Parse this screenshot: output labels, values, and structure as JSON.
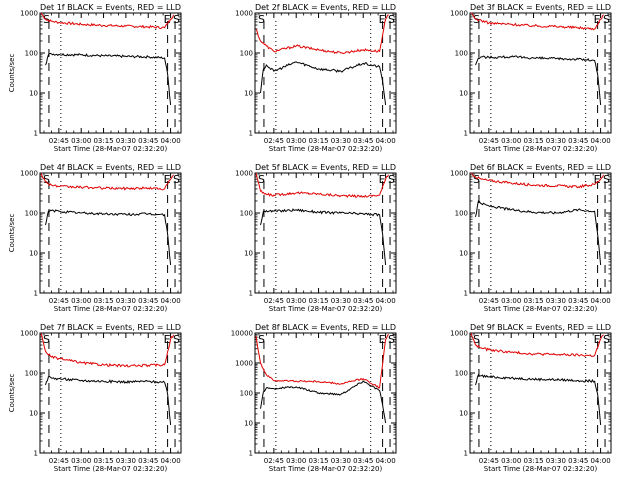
{
  "figure": {
    "ylabel": "Counts/sec",
    "xlabel": "Start Time (28-Mar-07 02:32:20)",
    "x_tick_labels": [
      "02:45",
      "03:00",
      "03:15",
      "03:30",
      "03:45",
      "04:00"
    ],
    "y_tick_labels": [
      "1",
      "10",
      "100",
      "1000"
    ],
    "y_tick_labels_wide": [
      "1",
      "10",
      "100",
      "1000",
      "10000"
    ],
    "markers": {
      "start": "S",
      "end": "E"
    },
    "colors": {
      "events": "#000000",
      "lld": "#e00000"
    }
  },
  "chart_data": [
    {
      "type": "line",
      "title": "Det 1f BLACK = Events, RED = LLD",
      "ylabel": "Counts/sec",
      "xlabel": "Start Time (28-Mar-07 02:32:20)",
      "ylim": [
        1,
        1000
      ],
      "log_y": true,
      "series": [
        {
          "name": "LLD",
          "color": "#e00000",
          "x": [
            "02:33",
            "02:36",
            "02:40",
            "02:45",
            "03:00",
            "03:15",
            "03:30",
            "03:45",
            "03:56",
            "04:00",
            "04:02"
          ],
          "y": [
            1000,
            700,
            620,
            580,
            520,
            490,
            470,
            450,
            430,
            700,
            900
          ]
        },
        {
          "name": "Events",
          "color": "#000000",
          "x": [
            "02:36",
            "02:38",
            "02:40",
            "02:45",
            "03:00",
            "03:15",
            "03:30",
            "03:45",
            "03:56",
            "03:58",
            "04:00"
          ],
          "y": [
            50,
            90,
            95,
            92,
            90,
            85,
            82,
            80,
            75,
            30,
            5
          ]
        }
      ]
    },
    {
      "type": "line",
      "title": "Det 2f BLACK = Events, RED = LLD",
      "ylabel": "Counts/sec",
      "xlabel": "Start Time (28-Mar-07 02:32:20)",
      "ylim": [
        1,
        1000
      ],
      "log_y": true,
      "series": [
        {
          "name": "LLD",
          "color": "#e00000",
          "x": [
            "02:33",
            "02:36",
            "02:40",
            "02:45",
            "03:00",
            "03:15",
            "03:30",
            "03:45",
            "03:56",
            "04:00",
            "04:02"
          ],
          "y": [
            400,
            200,
            150,
            110,
            150,
            120,
            100,
            120,
            110,
            700,
            900
          ]
        },
        {
          "name": "Events",
          "color": "#000000",
          "x": [
            "02:36",
            "02:38",
            "02:40",
            "02:45",
            "03:00",
            "03:15",
            "03:30",
            "03:45",
            "03:56",
            "03:58",
            "04:00"
          ],
          "y": [
            10,
            40,
            50,
            35,
            60,
            40,
            35,
            55,
            45,
            20,
            5
          ]
        }
      ]
    },
    {
      "type": "line",
      "title": "Det 3f BLACK = Events, RED = LLD",
      "ylabel": "Counts/sec",
      "xlabel": "Start Time (28-Mar-07 02:32:20)",
      "ylim": [
        1,
        1000
      ],
      "log_y": true,
      "series": [
        {
          "name": "LLD",
          "color": "#e00000",
          "x": [
            "02:33",
            "02:36",
            "02:40",
            "02:45",
            "03:00",
            "03:15",
            "03:30",
            "03:45",
            "03:56",
            "04:00",
            "04:02"
          ],
          "y": [
            1000,
            700,
            650,
            560,
            520,
            480,
            460,
            430,
            400,
            700,
            900
          ]
        },
        {
          "name": "Events",
          "color": "#000000",
          "x": [
            "02:36",
            "02:38",
            "02:40",
            "02:45",
            "03:00",
            "03:15",
            "03:30",
            "03:45",
            "03:56",
            "03:58",
            "04:00"
          ],
          "y": [
            50,
            75,
            80,
            78,
            80,
            75,
            72,
            70,
            65,
            30,
            5
          ]
        }
      ]
    },
    {
      "type": "line",
      "title": "Det 4f BLACK = Events, RED = LLD",
      "ylabel": "Counts/sec",
      "xlabel": "Start Time (28-Mar-07 02:32:20)",
      "ylim": [
        1,
        1000
      ],
      "log_y": true,
      "series": [
        {
          "name": "LLD",
          "color": "#e00000",
          "x": [
            "02:33",
            "02:36",
            "02:40",
            "02:45",
            "03:00",
            "03:15",
            "03:30",
            "03:45",
            "03:56",
            "04:00",
            "04:02"
          ],
          "y": [
            1000,
            600,
            500,
            460,
            440,
            420,
            410,
            420,
            400,
            700,
            900
          ]
        },
        {
          "name": "Events",
          "color": "#000000",
          "x": [
            "02:36",
            "02:38",
            "02:40",
            "02:45",
            "03:00",
            "03:15",
            "03:30",
            "03:45",
            "03:56",
            "03:58",
            "04:00"
          ],
          "y": [
            50,
            110,
            115,
            110,
            100,
            95,
            92,
            95,
            90,
            30,
            5
          ]
        }
      ]
    },
    {
      "type": "line",
      "title": "Det 5f BLACK = Events, RED = LLD",
      "ylabel": "Counts/sec",
      "xlabel": "Start Time (28-Mar-07 02:32:20)",
      "ylim": [
        1,
        1000
      ],
      "log_y": true,
      "series": [
        {
          "name": "LLD",
          "color": "#e00000",
          "x": [
            "02:33",
            "02:36",
            "02:40",
            "02:45",
            "03:00",
            "03:15",
            "03:30",
            "03:45",
            "03:56",
            "04:00",
            "04:02"
          ],
          "y": [
            1000,
            350,
            290,
            280,
            320,
            300,
            270,
            260,
            280,
            700,
            900
          ]
        },
        {
          "name": "Events",
          "color": "#000000",
          "x": [
            "02:36",
            "02:38",
            "02:40",
            "02:45",
            "03:00",
            "03:15",
            "03:30",
            "03:45",
            "03:56",
            "03:58",
            "04:00"
          ],
          "y": [
            50,
            110,
            115,
            110,
            120,
            105,
            100,
            95,
            90,
            30,
            5
          ]
        }
      ]
    },
    {
      "type": "line",
      "title": "Det 6f BLACK = Events, RED = LLD",
      "ylabel": "Counts/sec",
      "xlabel": "Start Time (28-Mar-07 02:32:20)",
      "ylim": [
        1,
        1000
      ],
      "log_y": true,
      "series": [
        {
          "name": "LLD",
          "color": "#e00000",
          "x": [
            "02:33",
            "02:36",
            "02:40",
            "02:45",
            "03:00",
            "03:15",
            "03:30",
            "03:45",
            "03:56",
            "04:00",
            "04:02"
          ],
          "y": [
            1000,
            800,
            700,
            650,
            560,
            500,
            480,
            450,
            520,
            700,
            900
          ]
        },
        {
          "name": "Events",
          "color": "#000000",
          "x": [
            "02:36",
            "02:38",
            "02:40",
            "02:45",
            "03:00",
            "03:15",
            "03:30",
            "03:45",
            "03:56",
            "03:58",
            "04:00"
          ],
          "y": [
            80,
            200,
            170,
            150,
            120,
            105,
            100,
            120,
            110,
            30,
            5
          ]
        }
      ]
    },
    {
      "type": "line",
      "title": "Det 7f BLACK = Events, RED = LLD",
      "ylabel": "Counts/sec",
      "xlabel": "Start Time (28-Mar-07 02:32:20)",
      "ylim": [
        1,
        1000
      ],
      "log_y": true,
      "series": [
        {
          "name": "LLD",
          "color": "#e00000",
          "x": [
            "02:33",
            "02:36",
            "02:40",
            "02:45",
            "03:00",
            "03:15",
            "03:30",
            "03:45",
            "03:56",
            "04:00",
            "04:02"
          ],
          "y": [
            1000,
            350,
            250,
            230,
            180,
            160,
            150,
            155,
            160,
            700,
            900
          ]
        },
        {
          "name": "Events",
          "color": "#000000",
          "x": [
            "02:36",
            "02:38",
            "02:40",
            "02:45",
            "03:00",
            "03:15",
            "03:30",
            "03:45",
            "03:56",
            "03:58",
            "04:00"
          ],
          "y": [
            50,
            80,
            75,
            72,
            65,
            62,
            60,
            62,
            58,
            30,
            5
          ]
        }
      ]
    },
    {
      "type": "line",
      "title": "Det 8f BLACK = Events, RED = LLD",
      "ylabel": "Counts/sec",
      "xlabel": "Start Time (28-Mar-07 02:32:20)",
      "ylim": [
        1,
        10000
      ],
      "log_y": true,
      "series": [
        {
          "name": "LLD",
          "color": "#e00000",
          "x": [
            "02:33",
            "02:36",
            "02:40",
            "02:45",
            "03:00",
            "03:15",
            "03:30",
            "03:45",
            "03:56",
            "04:00",
            "04:02"
          ],
          "y": [
            8000,
            1000,
            400,
            260,
            250,
            240,
            200,
            300,
            150,
            6000,
            9000
          ]
        },
        {
          "name": "Events",
          "color": "#000000",
          "x": [
            "02:36",
            "02:38",
            "02:40",
            "02:45",
            "03:00",
            "03:15",
            "03:30",
            "03:45",
            "03:56",
            "03:58",
            "04:00"
          ],
          "y": [
            30,
            110,
            150,
            140,
            160,
            100,
            90,
            250,
            120,
            40,
            10
          ]
        }
      ]
    },
    {
      "type": "line",
      "title": "Det 9f BLACK = Events, RED = LLD",
      "ylabel": "Counts/sec",
      "xlabel": "Start Time (28-Mar-07 02:32:20)",
      "ylim": [
        1,
        1000
      ],
      "log_y": true,
      "series": [
        {
          "name": "LLD",
          "color": "#e00000",
          "x": [
            "02:33",
            "02:36",
            "02:40",
            "02:45",
            "03:00",
            "03:15",
            "03:30",
            "03:45",
            "03:56",
            "04:00",
            "04:02"
          ],
          "y": [
            1000,
            500,
            420,
            380,
            330,
            300,
            290,
            280,
            270,
            700,
            900
          ]
        },
        {
          "name": "Events",
          "color": "#000000",
          "x": [
            "02:36",
            "02:38",
            "02:40",
            "02:45",
            "03:00",
            "03:15",
            "03:30",
            "03:45",
            "03:56",
            "03:58",
            "04:00"
          ],
          "y": [
            50,
            90,
            85,
            80,
            75,
            70,
            68,
            65,
            62,
            30,
            5
          ]
        }
      ]
    }
  ]
}
